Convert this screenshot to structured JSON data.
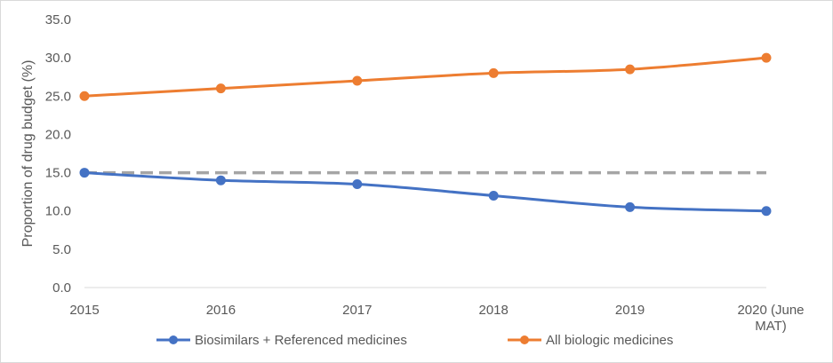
{
  "chart_data": {
    "type": "line",
    "title": "",
    "xlabel": "",
    "ylabel": "Proportion of drug budget (%)",
    "categories": [
      "2015",
      "2016",
      "2017",
      "2018",
      "2019",
      "2020 (June MAT)"
    ],
    "category_lines": [
      [
        "2015"
      ],
      [
        "2016"
      ],
      [
        "2017"
      ],
      [
        "2018"
      ],
      [
        "2019"
      ],
      [
        "2020 (June",
        "MAT)"
      ]
    ],
    "ylim": [
      0,
      35
    ],
    "yticks": [
      "0.0",
      "5.0",
      "10.0",
      "15.0",
      "20.0",
      "25.0",
      "30.0",
      "35.0"
    ],
    "grid": "none",
    "legend_position": "bottom",
    "series": [
      {
        "name": "Biosimilars + Referenced medicines",
        "color": "#4472c4",
        "values": [
          15.0,
          14.0,
          13.5,
          12.0,
          10.5,
          10.0
        ],
        "marker": "circle",
        "in_legend": true
      },
      {
        "name": "All biologic medicines",
        "color": "#ed7d31",
        "values": [
          25.0,
          26.0,
          27.0,
          28.0,
          28.5,
          30.0
        ],
        "marker": "circle",
        "in_legend": true
      },
      {
        "name": "",
        "color": "#a5a5a5",
        "values": [
          15.0,
          15.0,
          15.0,
          15.0,
          15.0,
          15.0
        ],
        "marker": "none",
        "dashed": true,
        "in_legend": false
      }
    ]
  }
}
